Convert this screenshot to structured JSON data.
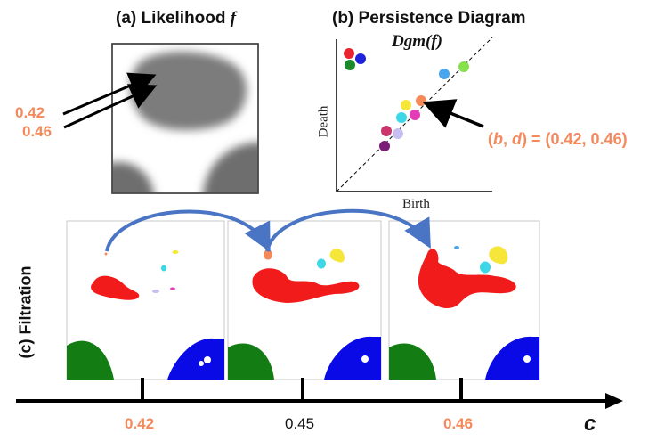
{
  "panel_a": {
    "title_prefix": "(a) Likelihood ",
    "title_var": "f",
    "pointer_labels": [
      "0.42",
      "0.46"
    ]
  },
  "panel_b": {
    "title": "(b) Persistence Diagram",
    "diagram_label": "Dgm(f)",
    "x_axis_label": "Birth",
    "y_axis_label": "Death",
    "highlight_label_prefix": "(",
    "highlight_b": "b",
    "highlight_sep": ", ",
    "highlight_d": "d",
    "highlight_suffix": ") = (0.42, 0.46)",
    "points": [
      {
        "color": "#e8242f"
      },
      {
        "color": "#1e22dc"
      },
      {
        "color": "#1b8a2a"
      },
      {
        "color": "#49a5ec"
      },
      {
        "color": "#86e14c"
      },
      {
        "color": "#f6e63a"
      },
      {
        "color": "#f58a58"
      },
      {
        "color": "#3dd8e8"
      },
      {
        "color": "#e23cb8"
      },
      {
        "color": "#c9376c"
      },
      {
        "color": "#c6bff0"
      },
      {
        "color": "#7a1f78"
      }
    ]
  },
  "panel_c": {
    "title": "(c) Filtration",
    "axis_label": "c",
    "ticks": [
      "0.42",
      "0.45",
      "0.46"
    ]
  },
  "colors": {
    "accent": "#f4895c",
    "arrow_blue": "#4a74c4",
    "blob_red": "#f21b1b",
    "blob_green": "#137d13",
    "blob_blue": "#0a0ae6"
  }
}
